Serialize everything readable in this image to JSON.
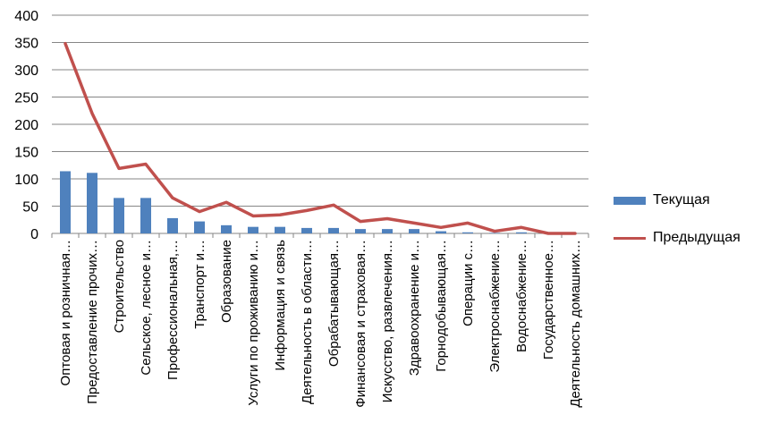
{
  "chart_data": {
    "type": "bar",
    "ylim": [
      0,
      400
    ],
    "yticks": [
      0,
      50,
      100,
      150,
      200,
      250,
      300,
      350,
      400
    ],
    "grid": true,
    "legend_position": "right",
    "categories": [
      "Оптовая и розничная…",
      "Предоставление прочих…",
      "Строительство",
      "Сельское, лесное и…",
      "Профессиональная,…",
      "Транспорт и…",
      "Образование",
      "Услуги по проживанию и…",
      "Информация и связь",
      "Деятельность в области…",
      "Обрабатывающая…",
      "Финансовая и страховая…",
      "Искусство, развлечения…",
      "Здравоохранение и…",
      "Горнодобывающая…",
      "Операции с…",
      "Электроснабжение…",
      "Водоснабжение…",
      "Государственное…",
      "Деятельность домашних…"
    ],
    "series": [
      {
        "name": "Текущая",
        "kind": "bar",
        "color": "#4F81BD",
        "values": [
          114,
          111,
          65,
          65,
          28,
          22,
          15,
          12,
          12,
          10,
          10,
          8,
          8,
          8,
          4,
          2,
          1,
          2,
          0,
          0
        ]
      },
      {
        "name": "Предыдущая",
        "kind": "line",
        "color": "#C0504D",
        "values": [
          348,
          220,
          119,
          127,
          65,
          40,
          57,
          32,
          34,
          42,
          52,
          22,
          27,
          19,
          11,
          19,
          4,
          11,
          0,
          0
        ]
      }
    ]
  }
}
